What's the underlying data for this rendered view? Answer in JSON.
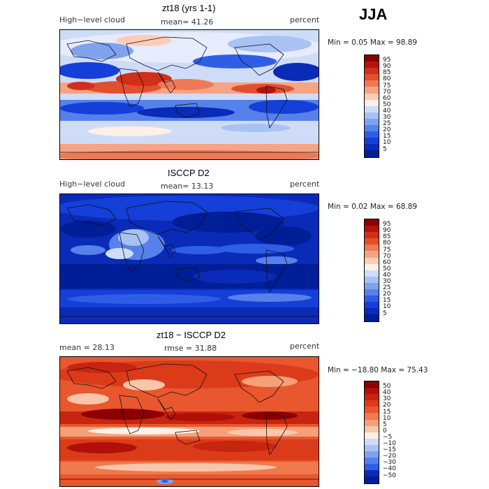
{
  "season": "JJA",
  "panels": [
    {
      "title": "zt18 (yrs 1-1)",
      "left_label": "High−level cloud",
      "center_label": "mean=  41.26",
      "right_label": "percent",
      "minmax": "Min =   0.05 Max =   98.89",
      "colorbar": {
        "labels": [
          "95",
          "90",
          "85",
          "80",
          "75",
          "70",
          "60",
          "50",
          "40",
          "30",
          "25",
          "20",
          "15",
          "10",
          "5"
        ],
        "colors": [
          "#8b0000",
          "#b5120f",
          "#d0301a",
          "#e05030",
          "#ee7a55",
          "#f6a485",
          "#fccdb6",
          "#fdf0e6",
          "#cfdcf7",
          "#a8c2f3",
          "#7fa2ee",
          "#5681ea",
          "#2f5ee6",
          "#143fd8",
          "#0a2ab8",
          "#001e96"
        ]
      }
    },
    {
      "title": "ISCCP D2",
      "left_label": "High−level cloud",
      "center_label": "mean=  13.13",
      "right_label": "percent",
      "minmax": "Min =   0.02 Max =   68.89",
      "colorbar": {
        "labels": [
          "95",
          "90",
          "85",
          "80",
          "75",
          "70",
          "60",
          "50",
          "40",
          "30",
          "25",
          "20",
          "15",
          "10",
          "5"
        ],
        "colors": [
          "#8b0000",
          "#b5120f",
          "#d0301a",
          "#e05030",
          "#ee7a55",
          "#f6a485",
          "#fccdb6",
          "#fdf0e6",
          "#cfdcf7",
          "#a8c2f3",
          "#7fa2ee",
          "#5681ea",
          "#2f5ee6",
          "#143fd8",
          "#0a2ab8",
          "#001e96"
        ]
      }
    },
    {
      "title": "zt18 − ISCCP D2",
      "left_label": "mean =   28.13",
      "center_label": "rmse =   31.88",
      "right_label": "percent",
      "minmax": "Min = −18.80 Max =   75.43",
      "colorbar": {
        "labels": [
          "50",
          "40",
          "30",
          "20",
          "15",
          "10",
          "5",
          "0",
          "−5",
          "−10",
          "−15",
          "−20",
          "−30",
          "−40",
          "−50"
        ],
        "colors": [
          "#8b0000",
          "#b01008",
          "#c82510",
          "#dc3b1a",
          "#e8572e",
          "#f07a4c",
          "#f6a078",
          "#fac6ab",
          "#fdf0e6",
          "#cfdcf7",
          "#a8c2f3",
          "#7fa2ee",
          "#5681ea",
          "#2f5ee6",
          "#0a2ab8",
          "#001e96"
        ]
      }
    }
  ]
}
